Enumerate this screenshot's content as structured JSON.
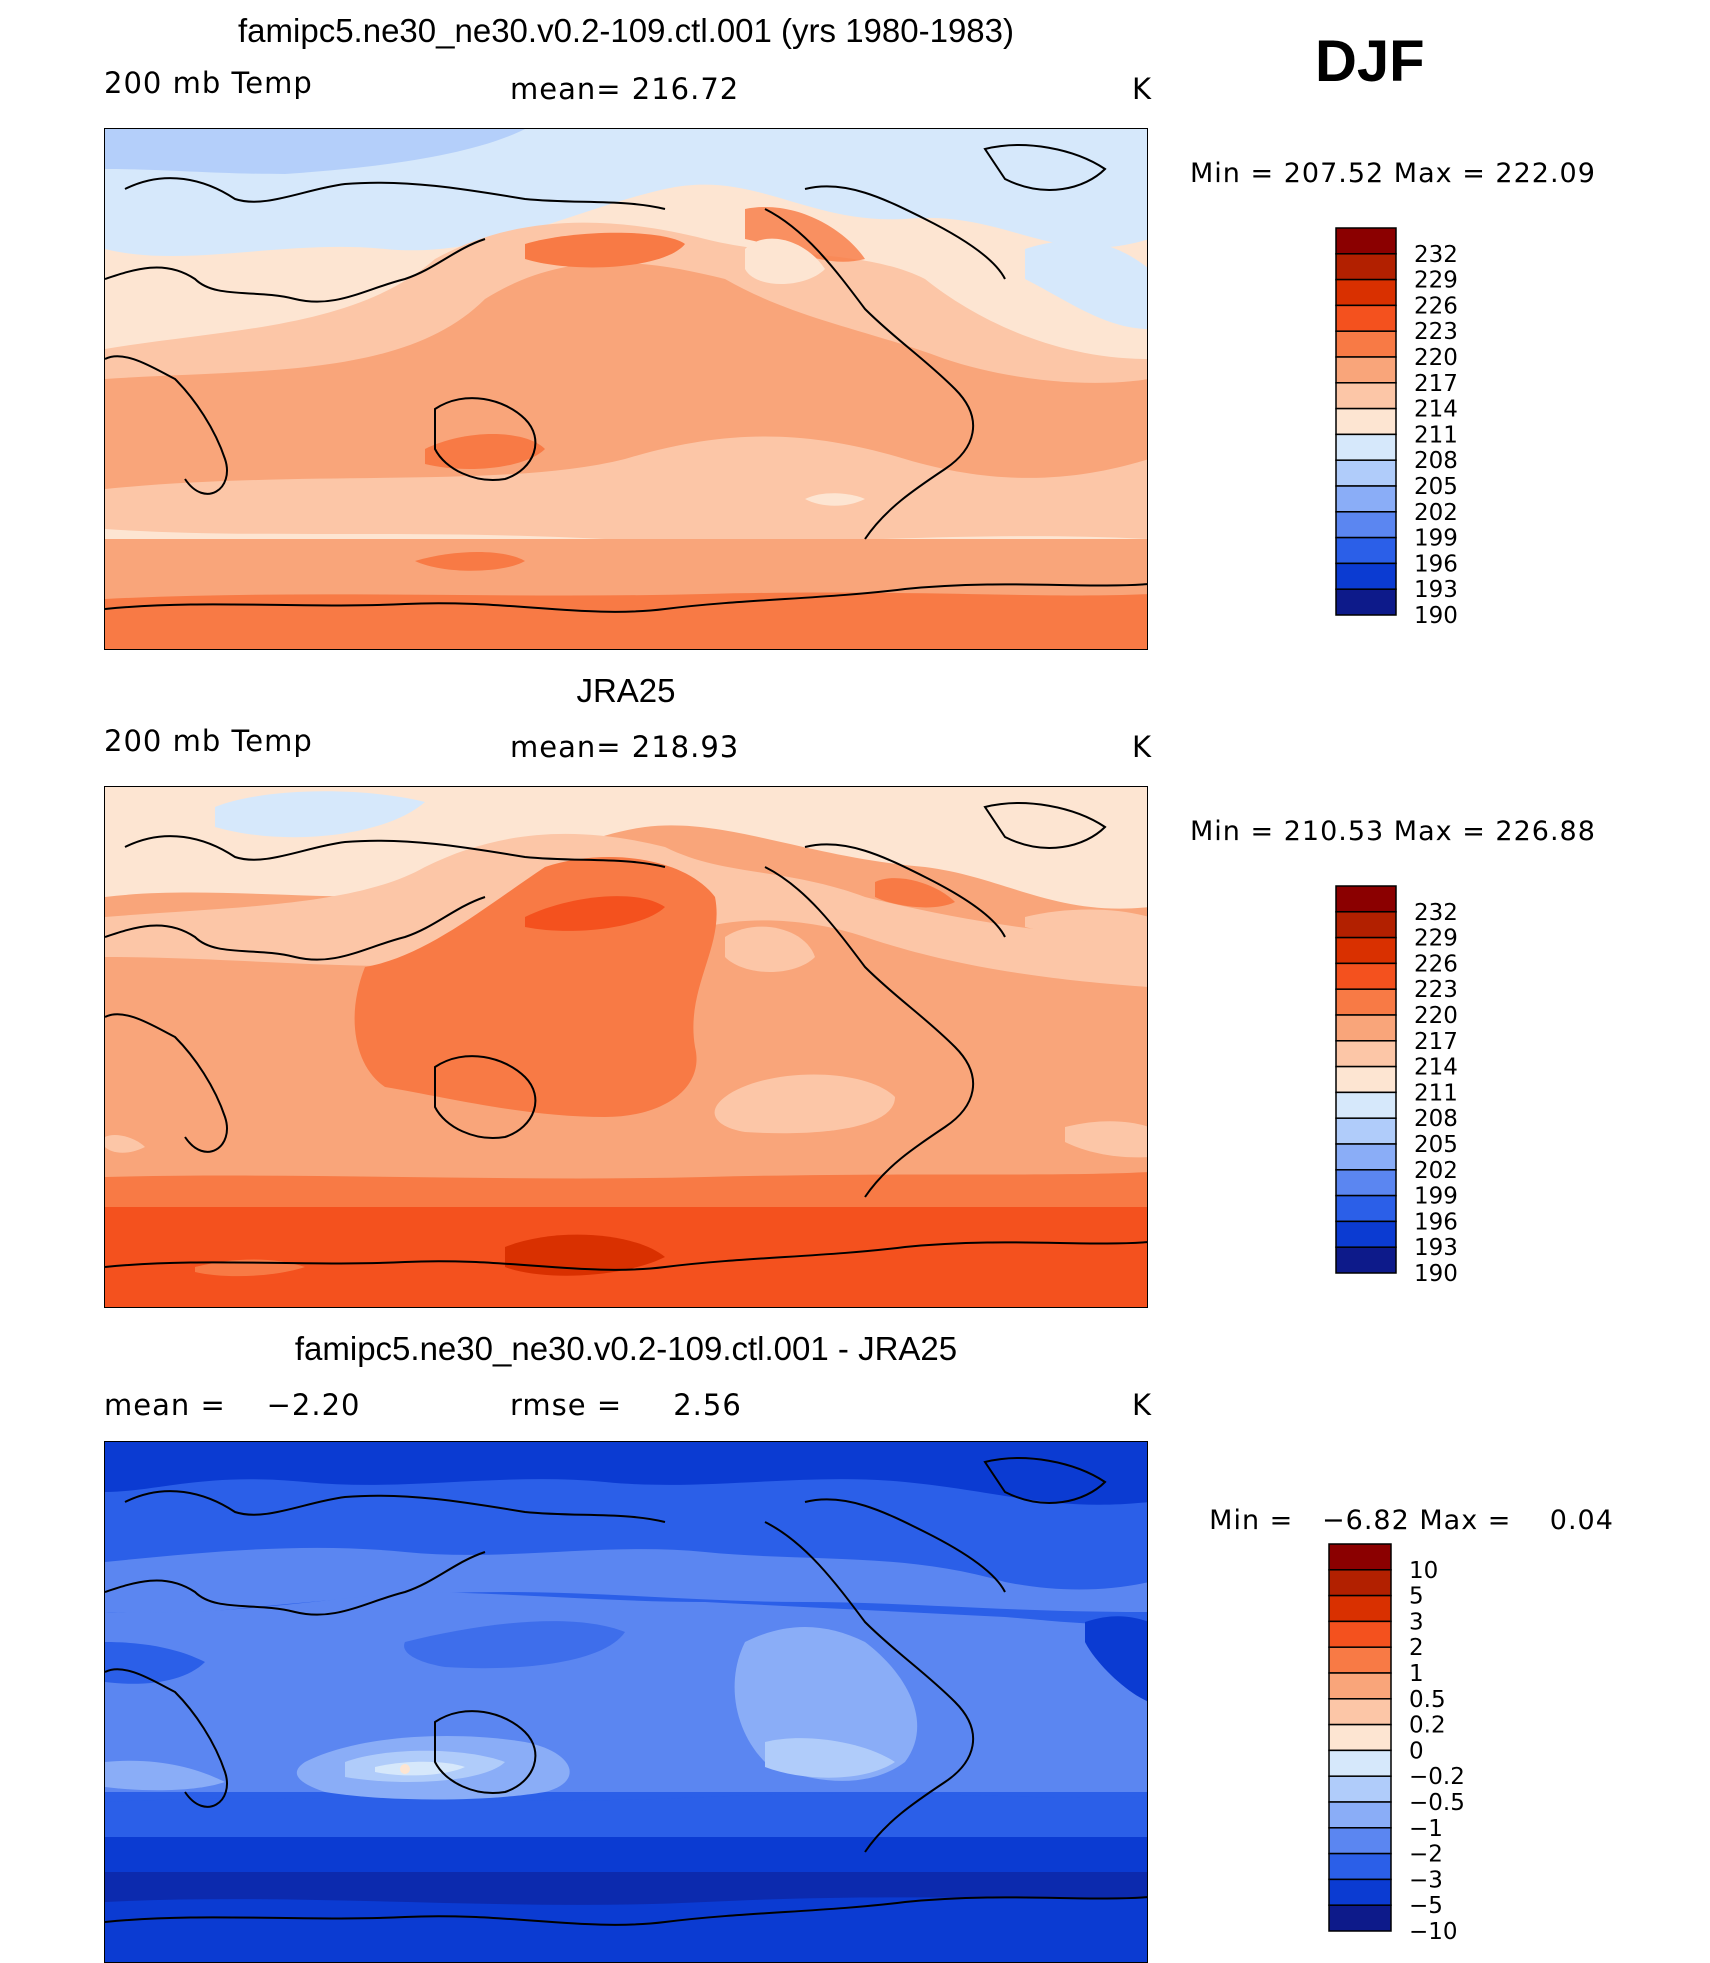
{
  "season": "DJF",
  "chart_data": [
    {
      "type": "heatmap",
      "title": "famipc5.ne30_ne30.v0.2-109.ctl.001 (yrs 1980-1983)",
      "field_label": "200 mb Temp",
      "stat": "mean= 216.72",
      "units": "K",
      "min_label": "Min",
      "max_label": "Max",
      "min": "207.52",
      "max": "222.09",
      "levels": [
        "232",
        "229",
        "226",
        "223",
        "220",
        "217",
        "214",
        "211",
        "208",
        "205",
        "202",
        "199",
        "196",
        "193",
        "190"
      ]
    },
    {
      "type": "heatmap",
      "title": "JRA25",
      "field_label": "200 mb Temp",
      "stat": "mean= 218.93",
      "units": "K",
      "min_label": "Min",
      "max_label": "Max",
      "min": "210.53",
      "max": "226.88",
      "levels": [
        "232",
        "229",
        "226",
        "223",
        "220",
        "217",
        "214",
        "211",
        "208",
        "205",
        "202",
        "199",
        "196",
        "193",
        "190"
      ]
    },
    {
      "type": "heatmap",
      "title": "famipc5.ne30_ne30.v0.2-109.ctl.001 - JRA25",
      "field_label": "mean =    −2.20",
      "stat": "rmse =     2.56",
      "units": "K",
      "min_label": "Min",
      "max_label": "Max",
      "min": "−6.82",
      "max": "0.04",
      "levels": [
        "10",
        "5",
        "3",
        "2",
        "1",
        "0.5",
        "0.2",
        "0",
        "−0.2",
        "−0.5",
        "−1",
        "−2",
        "−3",
        "−5",
        "−10"
      ]
    }
  ],
  "palette": [
    "#8b0000",
    "#b22000",
    "#d93000",
    "#f4511e",
    "#f87a45",
    "#f9a57a",
    "#fcc6a7",
    "#fde5d2",
    "#d6e8fb",
    "#b0ccfa",
    "#8aadf7",
    "#5b86f1",
    "#2b5fe8",
    "#0b3bd2",
    "#0d1a8a"
  ]
}
